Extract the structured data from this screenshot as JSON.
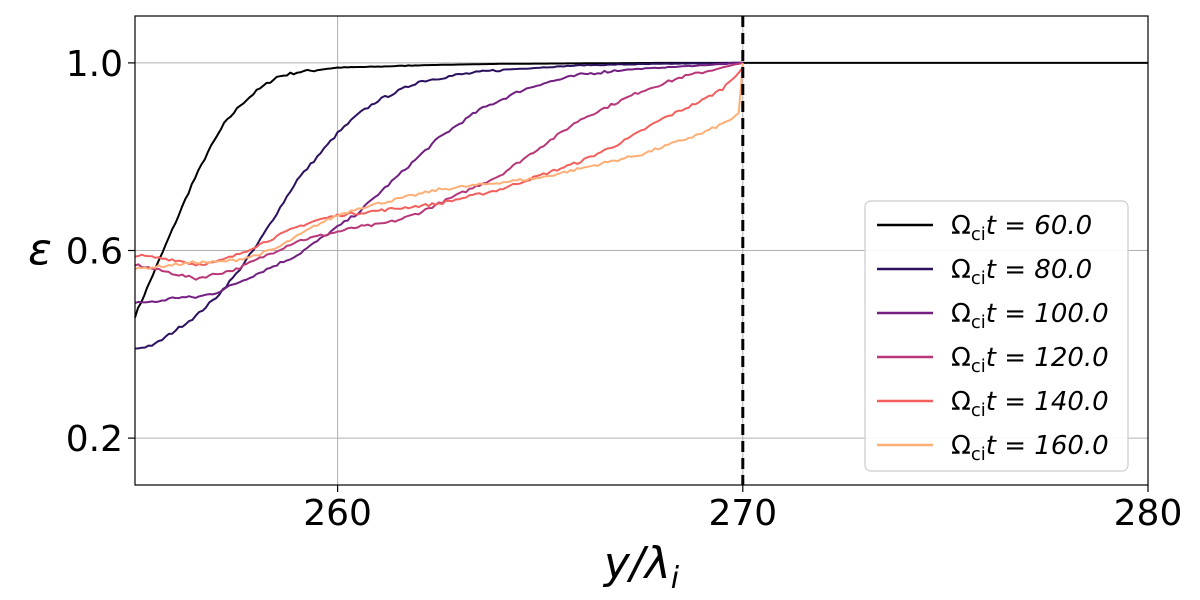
{
  "chart_data": {
    "type": "line",
    "title": "",
    "xlabel": "y/λ_i",
    "ylabel": "ε",
    "xlim": [
      255,
      280
    ],
    "ylim": [
      0.1,
      1.1
    ],
    "xticks": [
      260,
      270,
      280
    ],
    "xtick_labels": [
      "260",
      "270",
      "280"
    ],
    "yticks": [
      0.2,
      0.6,
      1.0
    ],
    "ytick_labels": [
      "0.2",
      "0.6",
      "1.0"
    ],
    "grid": true,
    "legend_position": "lower-right",
    "vline": {
      "x": 270,
      "style": "dashed",
      "color": "#000000"
    },
    "series": [
      {
        "name": "Ωcit = 60.0",
        "legend_prefix": "Ω",
        "legend_sub": "ci",
        "legend_suffix": "t = 60.0",
        "color": "#000004",
        "x": [
          255.0,
          255.3,
          255.6,
          256.0,
          256.4,
          256.8,
          257.2,
          257.6,
          258.0,
          258.5,
          259.0,
          259.5,
          260.0,
          261.0,
          262.0,
          264.0,
          266.0,
          268.0,
          270.0,
          280.0
        ],
        "y": [
          0.46,
          0.52,
          0.58,
          0.66,
          0.74,
          0.81,
          0.87,
          0.91,
          0.94,
          0.97,
          0.98,
          0.985,
          0.99,
          0.992,
          0.995,
          0.998,
          0.999,
          1.0,
          1.0,
          1.0
        ]
      },
      {
        "name": "Ωcit = 80.0",
        "legend_prefix": "Ω",
        "legend_sub": "ci",
        "legend_suffix": "t = 80.0",
        "color": "#2c115f",
        "x": [
          255.0,
          255.5,
          256.0,
          256.5,
          257.0,
          257.5,
          258.0,
          258.5,
          259.0,
          259.5,
          260.0,
          260.5,
          261.0,
          261.5,
          262.0,
          263.0,
          264.0,
          265.0,
          266.0,
          268.0,
          270.0
        ],
        "y": [
          0.39,
          0.4,
          0.43,
          0.46,
          0.5,
          0.55,
          0.61,
          0.68,
          0.75,
          0.8,
          0.85,
          0.89,
          0.92,
          0.94,
          0.96,
          0.975,
          0.985,
          0.99,
          0.995,
          0.998,
          1.0
        ]
      },
      {
        "name": "Ωcit = 100.0",
        "legend_prefix": "Ω",
        "legend_sub": "ci",
        "legend_suffix": "t = 100.0",
        "color": "#721f81",
        "x": [
          255.0,
          255.5,
          256.0,
          256.5,
          257.0,
          257.5,
          258.0,
          258.5,
          259.0,
          259.5,
          260.0,
          260.5,
          261.0,
          261.5,
          262.0,
          262.5,
          263.0,
          263.5,
          264.0,
          264.5,
          265.0,
          265.5,
          266.0,
          267.0,
          268.0,
          269.0,
          270.0
        ],
        "y": [
          0.49,
          0.49,
          0.5,
          0.5,
          0.51,
          0.53,
          0.55,
          0.57,
          0.59,
          0.62,
          0.65,
          0.68,
          0.72,
          0.76,
          0.8,
          0.84,
          0.87,
          0.9,
          0.92,
          0.94,
          0.955,
          0.965,
          0.975,
          0.985,
          0.99,
          0.995,
          1.0
        ]
      },
      {
        "name": "Ωcit = 120.0",
        "legend_prefix": "Ω",
        "legend_sub": "ci",
        "legend_suffix": "t = 120.0",
        "color": "#b73779",
        "x": [
          255.0,
          255.5,
          256.0,
          256.5,
          257.0,
          257.5,
          258.0,
          258.5,
          259.0,
          259.5,
          260.0,
          260.5,
          261.0,
          261.5,
          262.0,
          262.5,
          263.0,
          263.5,
          264.0,
          264.5,
          265.0,
          265.5,
          266.0,
          266.5,
          267.0,
          267.5,
          268.0,
          268.5,
          269.0,
          269.5,
          270.0
        ],
        "y": [
          0.57,
          0.56,
          0.55,
          0.54,
          0.55,
          0.56,
          0.58,
          0.6,
          0.62,
          0.63,
          0.64,
          0.65,
          0.655,
          0.665,
          0.68,
          0.7,
          0.72,
          0.74,
          0.76,
          0.79,
          0.82,
          0.85,
          0.88,
          0.9,
          0.92,
          0.94,
          0.955,
          0.97,
          0.98,
          0.99,
          1.0
        ]
      },
      {
        "name": "Ωcit = 140.0",
        "legend_prefix": "Ω",
        "legend_sub": "ci",
        "legend_suffix": "t = 140.0",
        "color": "#f1605d",
        "x": [
          255.0,
          255.5,
          256.0,
          256.5,
          257.0,
          257.5,
          258.0,
          258.5,
          259.0,
          259.5,
          260.0,
          260.5,
          261.0,
          261.5,
          262.0,
          262.5,
          263.0,
          263.5,
          264.0,
          264.5,
          265.0,
          265.5,
          266.0,
          266.5,
          267.0,
          267.5,
          268.0,
          268.5,
          269.0,
          269.5,
          270.0
        ],
        "y": [
          0.59,
          0.585,
          0.58,
          0.57,
          0.575,
          0.59,
          0.61,
          0.63,
          0.65,
          0.665,
          0.675,
          0.68,
          0.685,
          0.69,
          0.695,
          0.7,
          0.71,
          0.72,
          0.73,
          0.745,
          0.76,
          0.775,
          0.79,
          0.81,
          0.83,
          0.855,
          0.88,
          0.9,
          0.92,
          0.945,
          0.99
        ]
      },
      {
        "name": "Ωcit = 160.0",
        "legend_prefix": "Ω",
        "legend_sub": "ci",
        "legend_suffix": "t = 160.0",
        "color": "#feaf77",
        "x": [
          255.0,
          255.5,
          256.0,
          256.5,
          257.0,
          257.5,
          258.0,
          258.5,
          259.0,
          259.5,
          260.0,
          260.5,
          261.0,
          261.5,
          262.0,
          262.5,
          263.0,
          263.5,
          264.0,
          264.5,
          265.0,
          265.5,
          266.0,
          266.5,
          267.0,
          267.5,
          268.0,
          268.5,
          269.0,
          269.5,
          269.9,
          270.0
        ],
        "y": [
          0.56,
          0.565,
          0.57,
          0.575,
          0.575,
          0.58,
          0.59,
          0.605,
          0.63,
          0.655,
          0.675,
          0.69,
          0.7,
          0.71,
          0.72,
          0.73,
          0.735,
          0.74,
          0.745,
          0.75,
          0.755,
          0.765,
          0.775,
          0.785,
          0.795,
          0.805,
          0.82,
          0.835,
          0.85,
          0.87,
          0.89,
          1.0
        ]
      }
    ]
  }
}
